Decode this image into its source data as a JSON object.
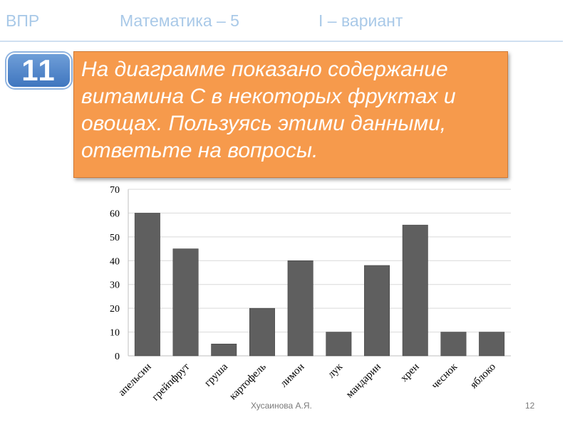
{
  "header": {
    "left": "ВПР",
    "center": "Математика – 5",
    "right": "I – вариант"
  },
  "task": {
    "number": "11",
    "text": "На диаграмме показано содержание витамина С в некоторых фруктах и овощах. Пользуясь этими данными, ответьте на вопросы."
  },
  "chart_data": {
    "type": "bar",
    "categories": [
      "апельсин",
      "грейпфрут",
      "груша",
      "картофель",
      "лимон",
      "лук",
      "мандарин",
      "хрен",
      "чеснок",
      "яблоко"
    ],
    "values": [
      60,
      45,
      5,
      20,
      40,
      10,
      38,
      55,
      10,
      10
    ],
    "title": "",
    "xlabel": "",
    "ylabel": "",
    "ylim": [
      0,
      70
    ],
    "yticks": [
      0,
      10,
      20,
      30,
      40,
      50,
      60,
      70
    ],
    "grid": true,
    "bar_color": "#5f5f5f"
  },
  "footer": {
    "author": "Хусаинова А.Я.",
    "page": "12"
  }
}
